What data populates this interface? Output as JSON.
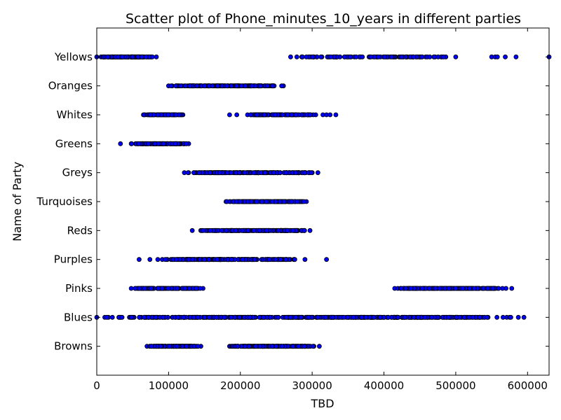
{
  "chart_data": {
    "type": "scatter",
    "title": "Scatter plot of Phone_minutes_10_years in different parties",
    "xlabel": "TBD",
    "ylabel": "Name of Party",
    "xlim": [
      0,
      630000
    ],
    "x_ticks": [
      0,
      100000,
      200000,
      300000,
      400000,
      500000,
      600000
    ],
    "x_tick_labels": [
      "0",
      "100000",
      "200000",
      "300000",
      "400000",
      "500000",
      "600000"
    ],
    "categories": [
      "Browns",
      "Blues",
      "Pinks",
      "Purples",
      "Reds",
      "Turquoises",
      "Greys",
      "Greens",
      "Whites",
      "Oranges",
      "Yellows"
    ],
    "grid": false,
    "marker_color": "#0000ff",
    "marker_edge_color": "#000000",
    "series": [
      {
        "category": "Yellows",
        "segments": [
          [
            0,
            83000,
            130
          ],
          [
            270000,
            500000,
            110
          ]
        ],
        "points": [
          550000,
          555000,
          558000,
          569000,
          584000,
          630000
        ]
      },
      {
        "category": "Oranges",
        "segments": [
          [
            100000,
            260000,
            190
          ]
        ],
        "points": []
      },
      {
        "category": "Whites",
        "segments": [
          [
            65000,
            120000,
            80
          ],
          [
            210000,
            305000,
            130
          ]
        ],
        "points": [
          185000,
          195000,
          315000,
          320000,
          325000,
          333000
        ]
      },
      {
        "category": "Greens",
        "segments": [
          [
            48000,
            128000,
            150
          ]
        ],
        "points": [
          33000
        ]
      },
      {
        "category": "Greys",
        "segments": [
          [
            122000,
            308000,
            230
          ]
        ],
        "points": []
      },
      {
        "category": "Turquoises",
        "segments": [
          [
            180000,
            292000,
            170
          ]
        ],
        "points": []
      },
      {
        "category": "Reds",
        "segments": [
          [
            133000,
            297000,
            210
          ]
        ],
        "points": []
      },
      {
        "category": "Purples",
        "segments": [
          [
            85000,
            290000,
            230
          ]
        ],
        "points": [
          59000,
          74000,
          320000
        ]
      },
      {
        "category": "Pinks",
        "segments": [
          [
            48000,
            148000,
            150
          ],
          [
            415000,
            570000,
            210
          ]
        ],
        "points": [
          578000
        ]
      },
      {
        "category": "Blues",
        "segments": [
          [
            0,
            595000,
            520
          ]
        ],
        "points": []
      },
      {
        "category": "Browns",
        "segments": [
          [
            70000,
            145000,
            130
          ],
          [
            185000,
            310000,
            200
          ]
        ],
        "points": []
      }
    ]
  }
}
